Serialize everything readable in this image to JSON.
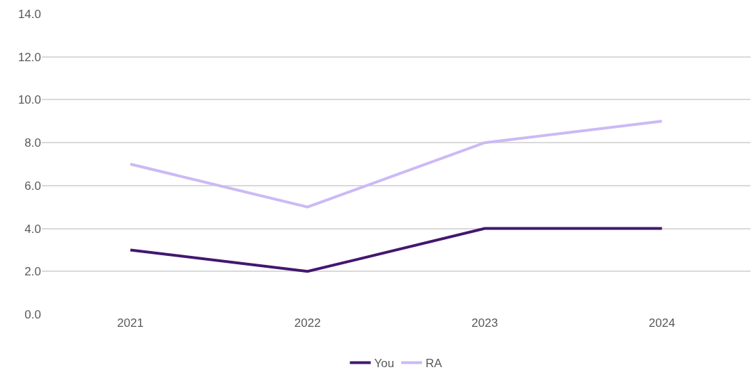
{
  "chart_data": {
    "type": "line",
    "categories": [
      "2021",
      "2022",
      "2023",
      "2024"
    ],
    "series": [
      {
        "name": "You",
        "color": "#43176f",
        "values": [
          3,
          2,
          4,
          4
        ]
      },
      {
        "name": "RA",
        "color": "#cdb9f5",
        "values": [
          7,
          5,
          8,
          9
        ]
      }
    ],
    "ylim": [
      0,
      14
    ],
    "yticks": [
      {
        "value": 0,
        "label": "0.0"
      },
      {
        "value": 2,
        "label": "2.0"
      },
      {
        "value": 4,
        "label": "4.0"
      },
      {
        "value": 6,
        "label": "6.0"
      },
      {
        "value": 8,
        "label": "8.0"
      },
      {
        "value": 10,
        "label": "10.0"
      },
      {
        "value": 12,
        "label": "12.0"
      },
      {
        "value": 14,
        "label": "14.0"
      }
    ],
    "grid": "y",
    "legend": "bottom",
    "marker": "none",
    "line_style": "solid"
  }
}
